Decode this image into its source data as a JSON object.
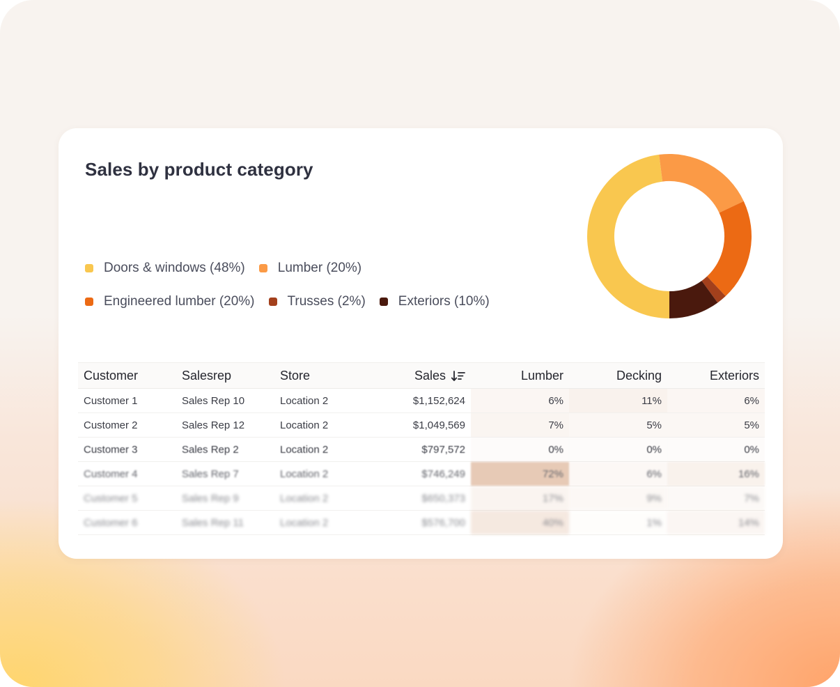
{
  "chart_data": {
    "type": "pie",
    "title": "Sales by product category",
    "slices": [
      {
        "label": "Doors & windows (48%)",
        "value": 48,
        "color": "#f9c74f"
      },
      {
        "label": "Lumber (20%)",
        "value": 20,
        "color": "#fb9a46"
      },
      {
        "label": "Engineered lumber (20%)",
        "value": 20,
        "color": "#ec6a14"
      },
      {
        "label": "Trusses (2%)",
        "value": 2,
        "color": "#a3401c"
      },
      {
        "label": "Exteriors (10%)",
        "value": 10,
        "color": "#4a190d"
      }
    ],
    "hole_ratio": 0.67,
    "start_angle_deg": 90,
    "direction": "clockwise",
    "legend_placement": "left"
  },
  "table": {
    "columns": [
      "Customer",
      "Salesrep",
      "Store",
      "Sales",
      "Lumber",
      "Decking",
      "Exteriors"
    ],
    "sort_icon": "sort-descending-icon",
    "heat_color": "#c8875a",
    "rows": [
      {
        "customer": "Customer 1",
        "salesrep": "Sales Rep 10",
        "store": "Location 2",
        "sales": "$1,152,624",
        "lumber": "6%",
        "decking": "11%",
        "exteriors": "6%"
      },
      {
        "customer": "Customer 2",
        "salesrep": "Sales Rep 12",
        "store": "Location 2",
        "sales": "$1,049,569",
        "lumber": "7%",
        "decking": "5%",
        "exteriors": "5%"
      },
      {
        "customer": "Customer 3",
        "salesrep": "Sales Rep 2",
        "store": "Location 2",
        "sales": "$797,572",
        "lumber": "0%",
        "decking": "0%",
        "exteriors": "0%"
      },
      {
        "customer": "Customer 4",
        "salesrep": "Sales Rep 7",
        "store": "Location 2",
        "sales": "$746,249",
        "lumber": "72%",
        "decking": "6%",
        "exteriors": "16%"
      },
      {
        "customer": "Customer 5",
        "salesrep": "Sales Rep 9",
        "store": "Location 2",
        "sales": "$650,373",
        "lumber": "17%",
        "decking": "9%",
        "exteriors": "7%"
      },
      {
        "customer": "Customer 6",
        "salesrep": "Sales Rep 11",
        "store": "Location 2",
        "sales": "$576,700",
        "lumber": "40%",
        "decking": "1%",
        "exteriors": "14%"
      }
    ]
  }
}
